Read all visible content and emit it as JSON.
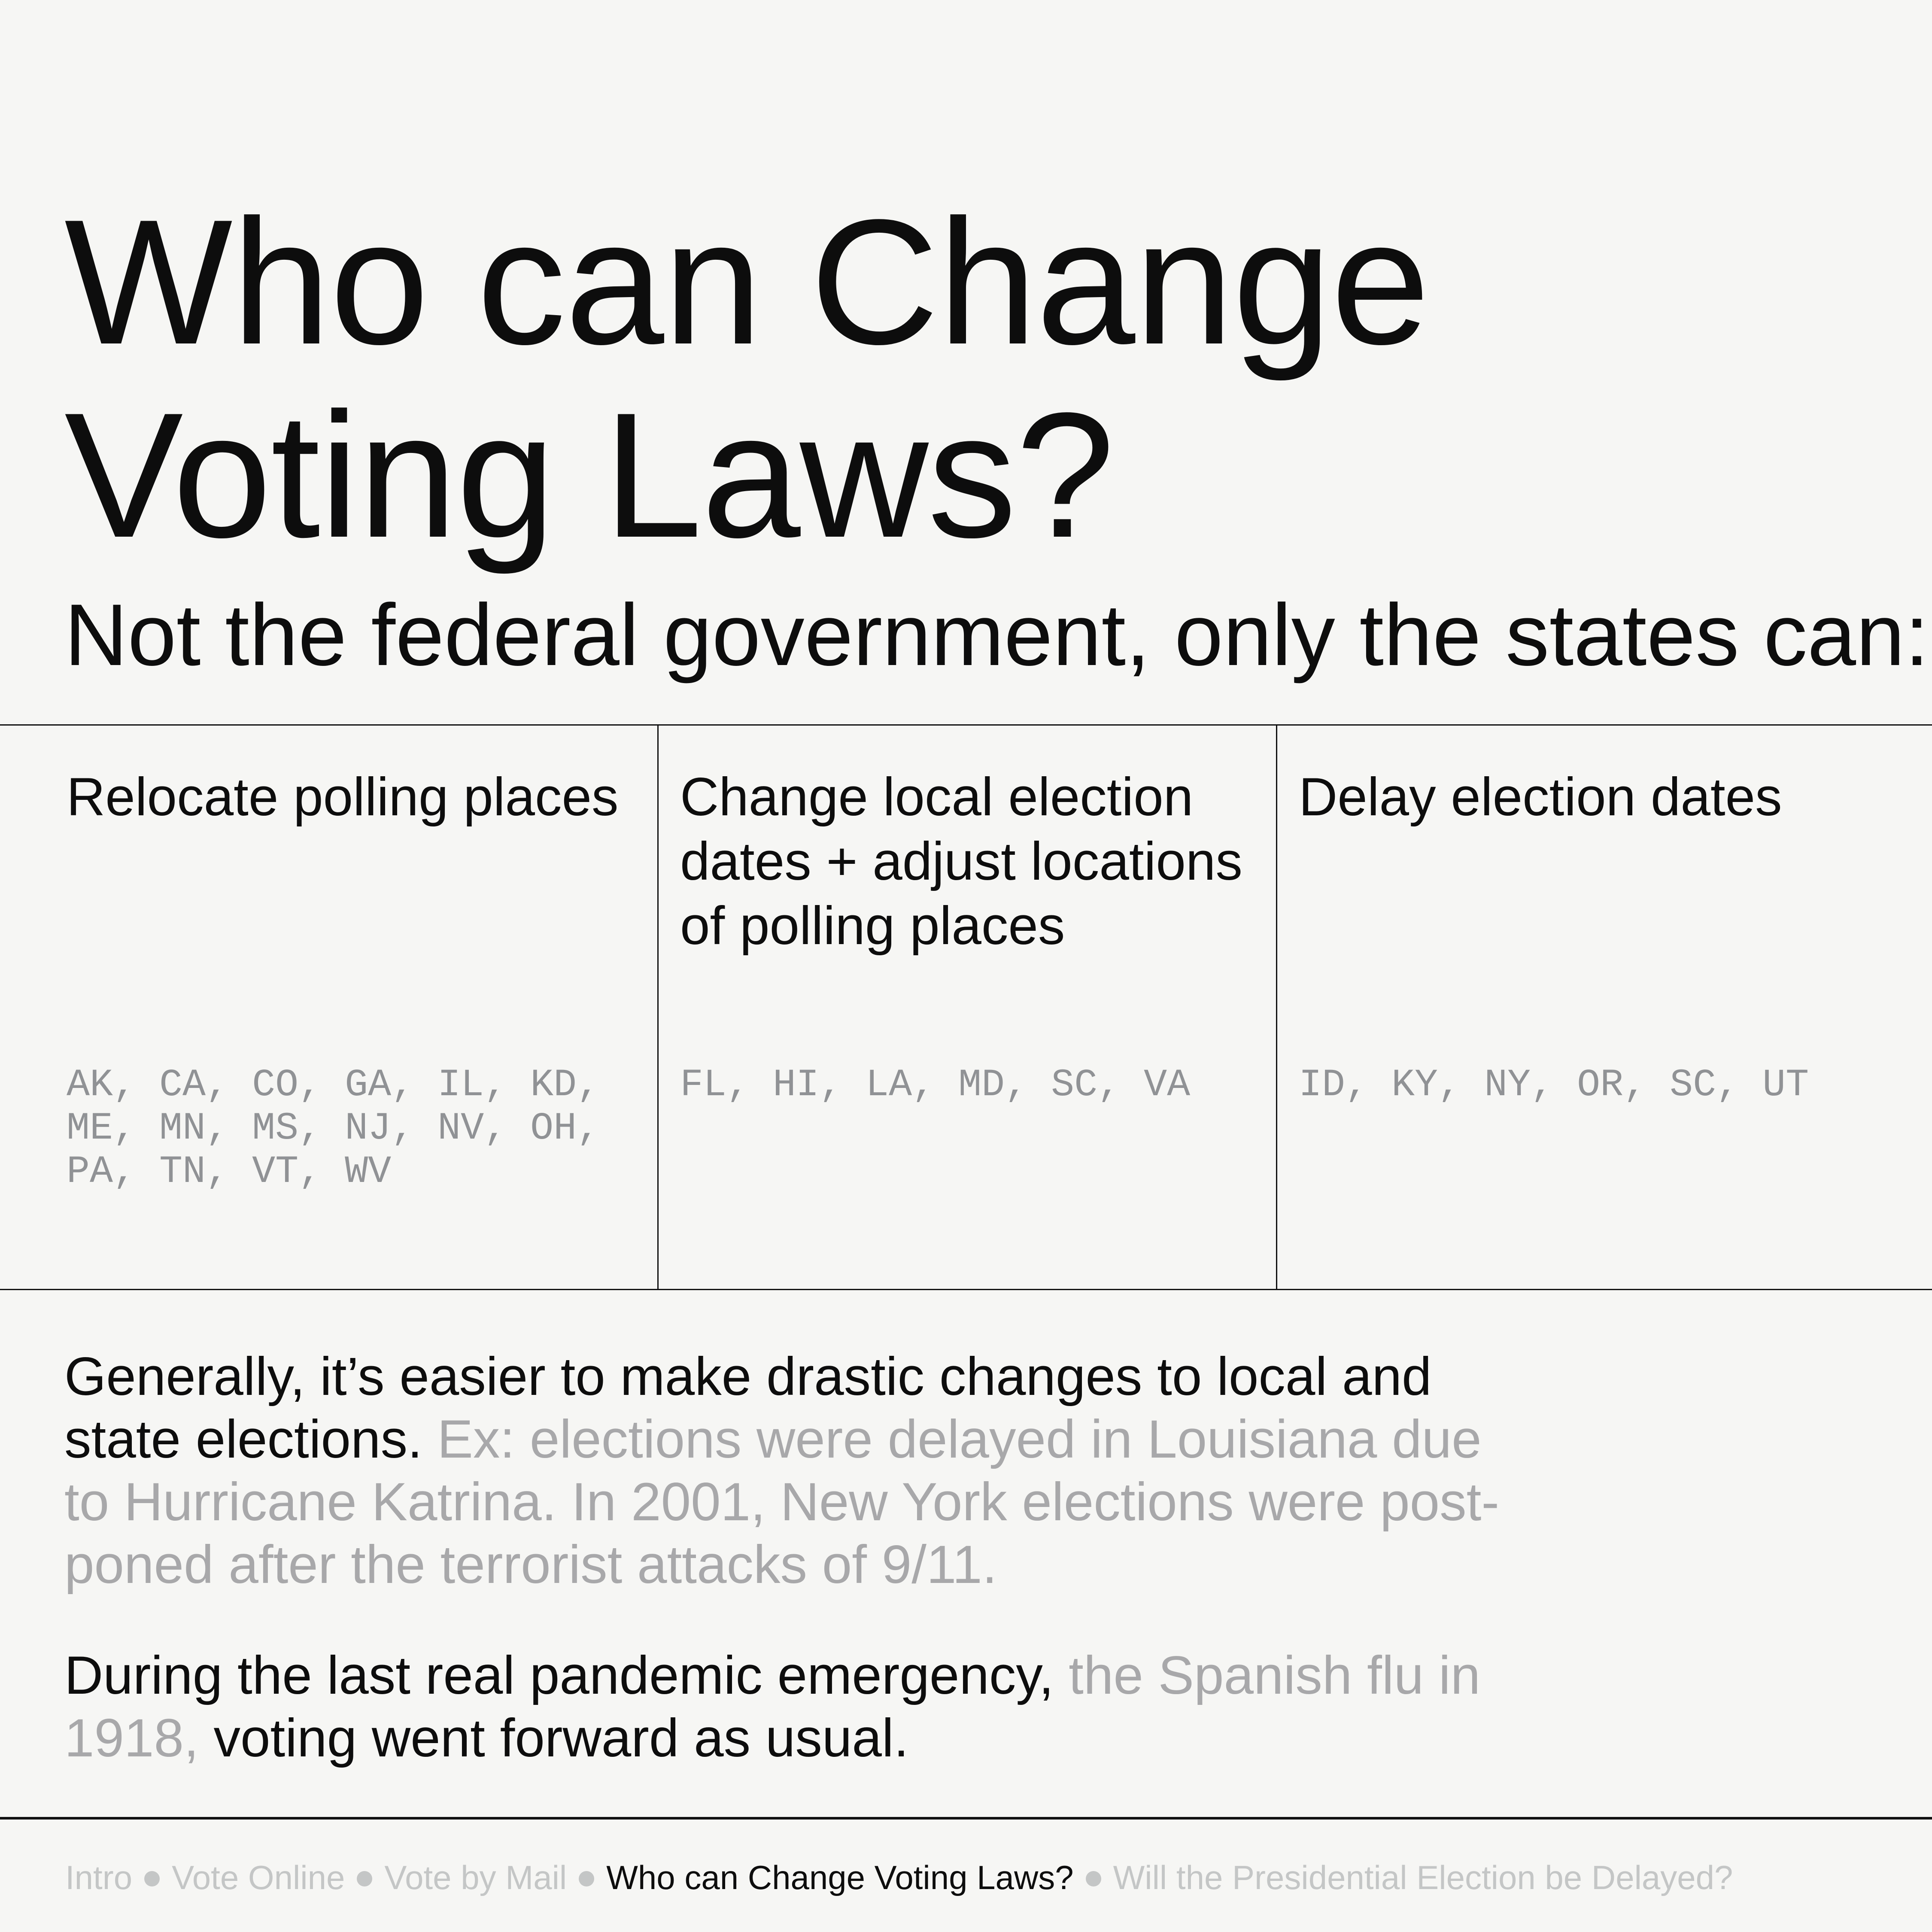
{
  "page": {
    "title": "Who can Change\nVoting Laws?",
    "subtitle": "Not the federal government, only the states can:"
  },
  "table": {
    "columns": [
      {
        "title": "Relocate polling places",
        "states": "AK, CA, CO, GA, IL, KD,\nME, MN, MS, NJ, NV, OH,\nPA, TN, VT, WV"
      },
      {
        "title": "Change local election\ndates + adjust locations\nof polling places",
        "states": "FL, HI, LA, MD, SC, VA"
      },
      {
        "title": "Delay election dates",
        "states": "ID, KY, NY, OR, SC, UT"
      }
    ]
  },
  "paragraphs": [
    {
      "segments": [
        {
          "text": "Generally, it’s easier to make drastic changes to local and\nstate elections.",
          "muted": false
        },
        {
          "text": " Ex: elections were delayed in Louisiana due\nto Hurricane Katrina. In 2001, New York elections were post-\nponed after the terrorist attacks of 9/11.",
          "muted": true
        }
      ]
    },
    {
      "segments": [
        {
          "text": "During the last real pandemic emergency,",
          "muted": false
        },
        {
          "text": " the Spanish flu in\n1918,",
          "muted": true
        },
        {
          "text": " voting went forward as usual.",
          "muted": false
        }
      ]
    }
  ],
  "footer": {
    "separator_icon": "dot",
    "items": [
      {
        "label": "Intro",
        "active": false
      },
      {
        "label": "Vote Online",
        "active": false
      },
      {
        "label": "Vote by Mail",
        "active": false
      },
      {
        "label": "Who can Change Voting Laws?",
        "active": true
      },
      {
        "label": "Will the Presidential Election be Delayed?",
        "active": false
      }
    ]
  },
  "colors": {
    "background": "#f6f6f4",
    "ink": "#0d0d0d",
    "rule": "#111111",
    "muted_states": "#909295",
    "muted_para": "#a8a8aa",
    "footer_inactive": "#c4c6c6",
    "footer_active": "#0d0d0d"
  }
}
